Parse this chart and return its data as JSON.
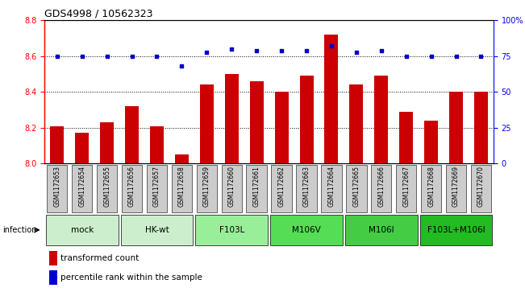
{
  "title": "GDS4998 / 10562323",
  "samples": [
    "GSM1172653",
    "GSM1172654",
    "GSM1172655",
    "GSM1172656",
    "GSM1172657",
    "GSM1172658",
    "GSM1172659",
    "GSM1172660",
    "GSM1172661",
    "GSM1172662",
    "GSM1172663",
    "GSM1172664",
    "GSM1172665",
    "GSM1172666",
    "GSM1172667",
    "GSM1172668",
    "GSM1172669",
    "GSM1172670"
  ],
  "bar_values": [
    8.21,
    8.17,
    8.23,
    8.32,
    8.21,
    8.05,
    8.44,
    8.5,
    8.46,
    8.4,
    8.49,
    8.72,
    8.44,
    8.49,
    8.29,
    8.24,
    8.4,
    8.4
  ],
  "dot_values": [
    75,
    75,
    75,
    75,
    75,
    68,
    78,
    80,
    79,
    79,
    79,
    82,
    78,
    79,
    75,
    75,
    75,
    75
  ],
  "group_defs": [
    {
      "label": "mock",
      "start": 0,
      "end": 2,
      "color": "#cceecc"
    },
    {
      "label": "HK-wt",
      "start": 3,
      "end": 5,
      "color": "#cceecc"
    },
    {
      "label": "F103L",
      "start": 6,
      "end": 8,
      "color": "#99ee99"
    },
    {
      "label": "M106V",
      "start": 9,
      "end": 11,
      "color": "#55dd55"
    },
    {
      "label": "M106I",
      "start": 12,
      "end": 14,
      "color": "#44cc44"
    },
    {
      "label": "F103L+M106I",
      "start": 15,
      "end": 17,
      "color": "#22bb22"
    }
  ],
  "ylim_left": [
    8.0,
    8.8
  ],
  "ylim_right": [
    0,
    100
  ],
  "yticks_left": [
    8.0,
    8.2,
    8.4,
    8.6,
    8.8
  ],
  "yticks_right": [
    0,
    25,
    50,
    75,
    100
  ],
  "ytick_right_labels": [
    "0",
    "25",
    "50",
    "75",
    "100%"
  ],
  "hlines": [
    8.2,
    8.4,
    8.6
  ],
  "bar_color": "#cc0000",
  "dot_color": "#0000cc",
  "bar_base": 8.0,
  "gsm_box_color": "#cccccc",
  "infection_label": "infection",
  "legend_bar": "transformed count",
  "legend_dot": "percentile rank within the sample",
  "title_fontsize": 9,
  "tick_fontsize": 7,
  "group_fontsize": 7.5,
  "legend_fontsize": 7.5
}
